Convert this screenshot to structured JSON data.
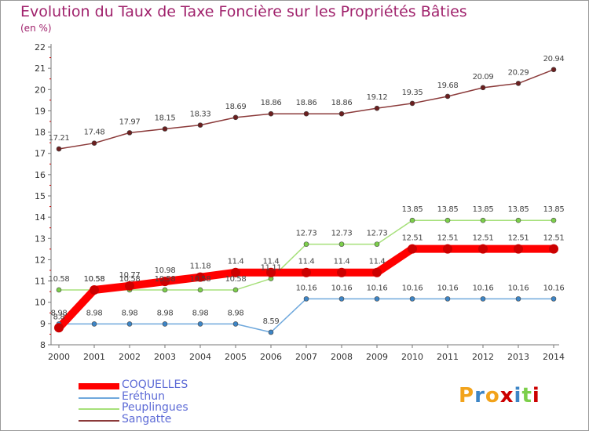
{
  "chart_data": {
    "type": "line",
    "title": "Evolution du Taux de Taxe Foncière sur les Propriétés Bâties",
    "ylabel": "(en %)",
    "xlabel": "",
    "ylim": [
      8,
      22
    ],
    "yticks": [
      "8",
      "9",
      "10",
      "11",
      "12",
      "13",
      "14",
      "15",
      "16",
      "17",
      "18",
      "19",
      "20",
      "21",
      "22"
    ],
    "categories": [
      "2000",
      "2001",
      "2002",
      "2003",
      "2004",
      "2005",
      "2006",
      "2007",
      "2008",
      "2009",
      "2010",
      "2011",
      "2012",
      "2013",
      "2014"
    ],
    "series": [
      {
        "name": "COQUELLES",
        "color": "#ff0000",
        "point_color": "#cc0000",
        "values": [
          8.8,
          10.58,
          10.77,
          10.98,
          11.18,
          11.4,
          11.4,
          11.4,
          11.4,
          11.4,
          12.51,
          12.51,
          12.51,
          12.51,
          12.51
        ],
        "labels": [
          "8.8",
          "10.58",
          "10.77",
          "10.98",
          "11.18",
          "11.4",
          "11.4",
          "11.4",
          "11.4",
          "11.4",
          "12.51",
          "12.51",
          "12.51",
          "12.51",
          "12.51"
        ]
      },
      {
        "name": "Eréthun",
        "color": "#6fa8dc",
        "point_color": "#3d85c6",
        "values": [
          8.98,
          8.98,
          8.98,
          8.98,
          8.98,
          8.98,
          8.59,
          10.16,
          10.16,
          10.16,
          10.16,
          10.16,
          10.16,
          10.16,
          10.16
        ],
        "labels": [
          "8.98",
          "8.98",
          "8.98",
          "8.98",
          "8.98",
          "8.98",
          "8.59",
          "10.16",
          "10.16",
          "10.16",
          "10.16",
          "10.16",
          "10.16",
          "10.16",
          "10.16"
        ]
      },
      {
        "name": "Peuplingues",
        "color": "#a6e07a",
        "point_color": "#7ccf4a",
        "values": [
          10.58,
          10.58,
          10.58,
          10.58,
          10.58,
          10.58,
          11.11,
          12.73,
          12.73,
          12.73,
          13.85,
          13.85,
          13.85,
          13.85,
          13.85
        ],
        "labels": [
          "10.58",
          "10.58",
          "10.58",
          "10.58",
          "10.58",
          "10.58",
          "11.11",
          "12.73",
          "12.73",
          "12.73",
          "13.85",
          "13.85",
          "13.85",
          "13.85",
          "13.85"
        ]
      },
      {
        "name": "Sangatte",
        "color": "#8b3a3a",
        "point_color": "#6b1f1f",
        "values": [
          17.21,
          17.48,
          17.97,
          18.15,
          18.33,
          18.69,
          18.86,
          18.86,
          18.86,
          19.12,
          19.35,
          19.68,
          20.09,
          20.29,
          20.94
        ],
        "labels": [
          "17.21",
          "17.48",
          "17.97",
          "18.15",
          "18.33",
          "18.69",
          "18.86",
          "18.86",
          "18.86",
          "19.12",
          "19.35",
          "19.68",
          "20.09",
          "20.29",
          "20.94"
        ]
      }
    ],
    "legend_position": "bottom-left",
    "grid": false
  },
  "brand": {
    "letters": [
      "P",
      "r",
      "o",
      "x",
      "i",
      "t",
      "i"
    ],
    "colors": [
      "#f2a31b",
      "#3d85c6",
      "#f2a31b",
      "#cc0000",
      "#3d85c6",
      "#7ccf4a",
      "#cc0000"
    ]
  }
}
